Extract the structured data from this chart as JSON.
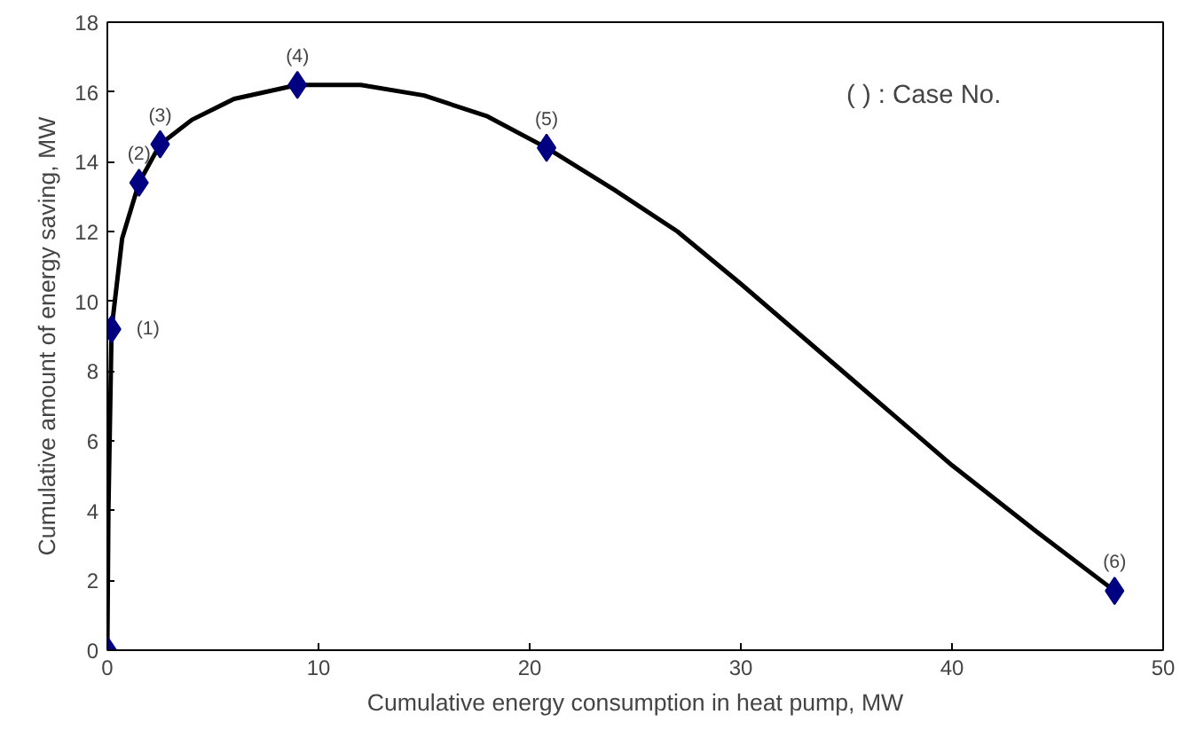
{
  "chart_data": {
    "type": "line",
    "xlabel": "Cumulative energy consumption in heat pump, MW",
    "ylabel": "Cumulative amount of energy saving, MW",
    "xlim": [
      0,
      50
    ],
    "ylim": [
      0,
      18
    ],
    "xticks": [
      0,
      10,
      20,
      30,
      40,
      50
    ],
    "yticks": [
      0,
      2,
      4,
      6,
      8,
      10,
      12,
      14,
      16,
      18
    ],
    "grid": false,
    "series": [
      {
        "color": "#000000",
        "marker": "none",
        "x": [
          0,
          0.05,
          0.2,
          0.7,
          1.5,
          2.5,
          4,
          6,
          9,
          12,
          15,
          18,
          20.8,
          24,
          27,
          30,
          35,
          40,
          44,
          47.7
        ],
        "values": [
          0,
          4,
          9.2,
          11.8,
          13.4,
          14.5,
          15.2,
          15.8,
          16.2,
          16.2,
          15.9,
          15.3,
          14.4,
          13.2,
          12,
          10.5,
          7.9,
          5.3,
          3.4,
          1.7
        ]
      },
      {
        "type": "scatter",
        "color": "#000080",
        "marker": "diamond",
        "x": [
          0,
          0.2,
          1.5,
          2.5,
          9,
          20.8,
          47.7
        ],
        "values": [
          0,
          9.2,
          13.4,
          14.5,
          16.2,
          14.4,
          1.7
        ]
      }
    ],
    "annotations": [
      {
        "text": "(1)",
        "x": 0.2,
        "y": 9.2
      },
      {
        "text": "(2)",
        "x": 1.5,
        "y": 13.4
      },
      {
        "text": "(3)",
        "x": 2.5,
        "y": 14.5
      },
      {
        "text": "(4)",
        "x": 9,
        "y": 16.2
      },
      {
        "text": "(5)",
        "x": 20.8,
        "y": 14.4
      },
      {
        "text": "(6)",
        "x": 47.7,
        "y": 1.7
      },
      "( ) : Case No."
    ]
  }
}
